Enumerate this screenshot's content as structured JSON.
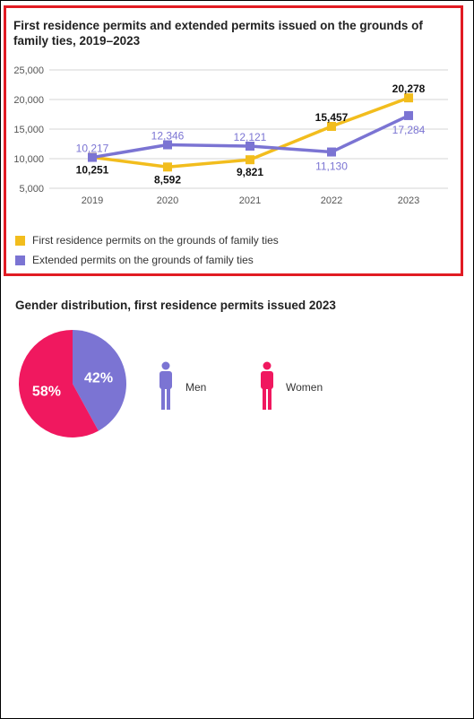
{
  "chart_data": [
    {
      "type": "line",
      "title": "First residence permits and extended permits issued on the grounds of family ties, 2019–2023",
      "categories": [
        "2019",
        "2020",
        "2021",
        "2022",
        "2023"
      ],
      "ylim": [
        5000,
        25000
      ],
      "yticks": [
        "5,000",
        "10,000",
        "15,000",
        "20,000",
        "25,000"
      ],
      "grid": true,
      "legend_position": "bottom-left",
      "series": [
        {
          "name": "First residence permits on the grounds of family ties",
          "values": [
            10251,
            8592,
            9821,
            15457,
            20278
          ],
          "labels": [
            "10,251",
            "8,592",
            "9,821",
            "15,457",
            "20,278"
          ],
          "color": "#f2bd1d"
        },
        {
          "name": "Extended permits on the grounds of family ties",
          "values": [
            10217,
            12346,
            12121,
            11130,
            17284
          ],
          "labels": [
            "10,217",
            "12,346",
            "12,121",
            "11,130",
            "17,284"
          ],
          "color": "#7b74d3"
        }
      ]
    },
    {
      "type": "pie",
      "title": "Gender distribution, first residence permits issued 2023",
      "categories": [
        "Men",
        "Women"
      ],
      "values": [
        42,
        58
      ],
      "labels": [
        "42%",
        "58%"
      ],
      "colors": [
        "#7b74d3",
        "#f0185f"
      ]
    }
  ]
}
